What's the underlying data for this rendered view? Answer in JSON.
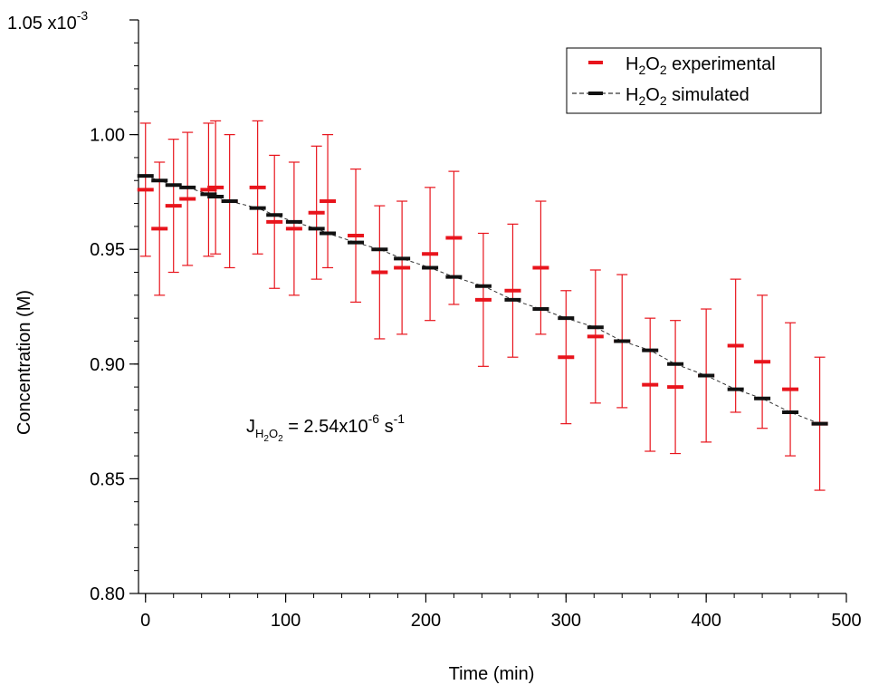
{
  "chart_data": {
    "type": "scatter",
    "title": "",
    "xlabel": "Time (min)",
    "ylabel": "Concentration (M)",
    "xlim": [
      -5,
      500
    ],
    "ylim": [
      0.8,
      1.05
    ],
    "y_multiplier_label": {
      "base": "x10",
      "exponent": "-3"
    },
    "x_ticks": [
      0,
      100,
      200,
      300,
      400,
      500
    ],
    "y_ticks": [
      0.8,
      0.85,
      0.9,
      0.95,
      1.0,
      1.05
    ],
    "y_tick_labels": [
      "0.80",
      "0.85",
      "0.90",
      "0.95",
      "1.00",
      "1.05"
    ],
    "x_minor_step": 20,
    "y_minor_step": 0.01,
    "grid": false,
    "legend_position": "top-right",
    "series": [
      {
        "name": "H2O2 experimental",
        "legend": {
          "pre": "H",
          "sub1": "2",
          "mid": "O",
          "sub2": "2",
          "post": " experimental"
        },
        "color": "#e8141c",
        "marker": "dash",
        "error": 0.029,
        "x": [
          0,
          10,
          20,
          30,
          45,
          50,
          60,
          80,
          92,
          106,
          122,
          130,
          150,
          167,
          183,
          203,
          220,
          241,
          262,
          282,
          300,
          321,
          340,
          360,
          378,
          400,
          421,
          440,
          460,
          481
        ],
        "y": [
          0.976,
          0.959,
          0.969,
          0.972,
          0.976,
          0.977,
          0.971,
          0.977,
          0.962,
          0.959,
          0.966,
          0.971,
          0.956,
          0.94,
          0.942,
          0.948,
          0.955,
          0.928,
          0.932,
          0.942,
          0.903,
          0.912,
          0.91,
          0.891,
          0.89,
          0.895,
          0.908,
          0.901,
          0.889,
          0.874
        ]
      },
      {
        "name": "H2O2 simulated",
        "legend": {
          "pre": "H",
          "sub1": "2",
          "mid": "O",
          "sub2": "2",
          "post": " simulated"
        },
        "color": "#111111",
        "marker": "dash",
        "line": "dashed",
        "x": [
          0,
          10,
          20,
          30,
          45,
          50,
          60,
          80,
          92,
          106,
          122,
          130,
          150,
          167,
          183,
          203,
          220,
          241,
          262,
          282,
          300,
          321,
          340,
          360,
          378,
          400,
          421,
          440,
          460,
          481
        ],
        "y": [
          0.982,
          0.98,
          0.978,
          0.977,
          0.974,
          0.973,
          0.971,
          0.968,
          0.965,
          0.962,
          0.959,
          0.957,
          0.953,
          0.95,
          0.946,
          0.942,
          0.938,
          0.934,
          0.928,
          0.924,
          0.92,
          0.916,
          0.91,
          0.906,
          0.9,
          0.895,
          0.889,
          0.885,
          0.879,
          0.874
        ]
      }
    ],
    "annotation": {
      "lhs": "J",
      "sub_pre": "H",
      "sub_a": "2",
      "sub_mid": "O",
      "sub_b": "2",
      "mid": " = 2.54x10",
      "exp1": "-6",
      "unit": " s",
      "exp2": "-1"
    }
  }
}
